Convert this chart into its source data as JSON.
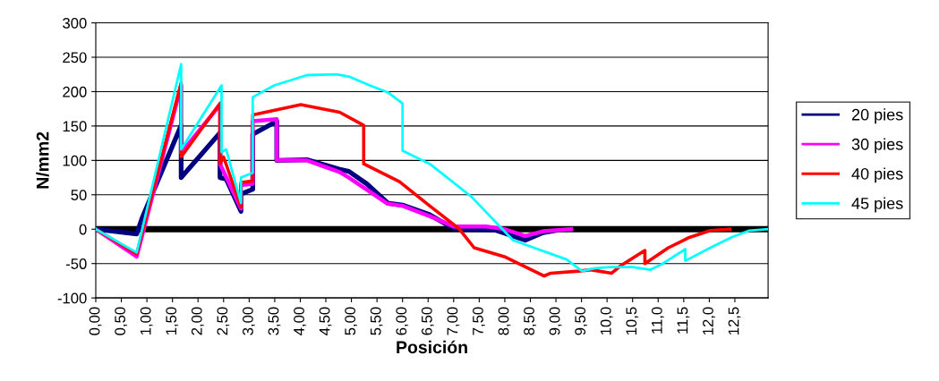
{
  "chart_data": {
    "type": "line",
    "xlabel": "Posición",
    "ylabel": "N/mm2",
    "xlim": [
      0,
      13.15
    ],
    "ylim": [
      -100,
      300
    ],
    "yticks": [
      -100,
      -50,
      0,
      50,
      100,
      150,
      200,
      250,
      300
    ],
    "xticks": [
      {
        "value": 0,
        "label": "0,00"
      },
      {
        "value": 0.5,
        "label": "0,50"
      },
      {
        "value": 1,
        "label": "1,00"
      },
      {
        "value": 1.5,
        "label": "1,50"
      },
      {
        "value": 2,
        "label": "2,00"
      },
      {
        "value": 2.5,
        "label": "2,50"
      },
      {
        "value": 3,
        "label": "3,00"
      },
      {
        "value": 3.5,
        "label": "3,50"
      },
      {
        "value": 4,
        "label": "4,00"
      },
      {
        "value": 4.5,
        "label": "4,50"
      },
      {
        "value": 5,
        "label": "5,00"
      },
      {
        "value": 5.5,
        "label": "5,50"
      },
      {
        "value": 6,
        "label": "6,00"
      },
      {
        "value": 6.5,
        "label": "6,50"
      },
      {
        "value": 7,
        "label": "7,00"
      },
      {
        "value": 7.5,
        "label": "7,50"
      },
      {
        "value": 8,
        "label": "8,00"
      },
      {
        "value": 8.5,
        "label": "8,50"
      },
      {
        "value": 9,
        "label": "9,00"
      },
      {
        "value": 9.5,
        "label": "9,50"
      },
      {
        "value": 10,
        "label": "10,0"
      },
      {
        "value": 10.5,
        "label": "10,5"
      },
      {
        "value": 11,
        "label": "11,0"
      },
      {
        "value": 11.5,
        "label": "11,5"
      },
      {
        "value": 12,
        "label": "12,0"
      },
      {
        "value": 12.5,
        "label": "12,5"
      }
    ],
    "grid": "y",
    "legend": "right",
    "marker": "none",
    "line_style": "solid",
    "ref_lines": [
      {
        "axis": "y",
        "value": 0,
        "color": "#000000"
      }
    ],
    "series": [
      {
        "name": "20 pies",
        "color": "#000080",
        "x": [
          0,
          0.8,
          0.91,
          1.67,
          1.67,
          2.43,
          2.43,
          2.55,
          2.84,
          2.84,
          3.07,
          3.07,
          3.54,
          3.54,
          4.13,
          4.77,
          4.95,
          5.3,
          5.71,
          6.0,
          6.53,
          7.0,
          7.2,
          7.8,
          8.4,
          8.75,
          8.98
        ],
        "values": [
          0,
          -7,
          17,
          151,
          75,
          140,
          75,
          73,
          26,
          51,
          58,
          138,
          157,
          100,
          101,
          87,
          84,
          66,
          38,
          35,
          21,
          1,
          0,
          -1,
          -16,
          -5,
          -2
        ]
      },
      {
        "name": "30 pies",
        "color": "#ff00ff",
        "x": [
          0,
          0.8,
          1.67,
          1.67,
          2.43,
          2.43,
          2.84,
          2.84,
          3.07,
          3.07,
          3.54,
          3.54,
          4.13,
          4.77,
          4.95,
          5.71,
          6.0,
          6.53,
          7.0,
          7.63,
          8.0,
          8.4,
          8.75,
          9.3
        ],
        "values": [
          0,
          -40,
          209,
          111,
          181,
          95,
          30,
          64,
          66,
          157,
          160,
          100,
          100,
          83,
          75,
          37,
          34,
          19,
          4,
          4,
          0,
          -10,
          -3,
          0
        ]
      },
      {
        "name": "40 pies",
        "color": "#ff0000",
        "x": [
          0,
          0.8,
          1.67,
          1.67,
          2.43,
          2.43,
          2.5,
          2.84,
          2.84,
          3.07,
          3.07,
          4.01,
          4.77,
          5.24,
          5.24,
          5.94,
          6.53,
          7.1,
          7.4,
          7.99,
          8.77,
          8.9,
          9.45,
          9.68,
          10.09,
          10.27,
          10.74,
          10.74,
          11.2,
          11.61,
          12.02,
          12.4
        ],
        "values": [
          0,
          -36,
          213,
          105,
          183,
          95,
          105,
          32,
          68,
          70,
          166,
          181,
          170,
          151,
          95,
          69,
          34,
          1,
          -27,
          -40,
          -68,
          -64,
          -61,
          -59,
          -64,
          -53,
          -31,
          -50,
          -27,
          -12,
          -2,
          0
        ]
      },
      {
        "name": "45 pies",
        "color": "#00ffff",
        "x": [
          0,
          0.8,
          1.67,
          1.67,
          2.46,
          2.46,
          2.55,
          2.84,
          2.84,
          3.07,
          3.07,
          3.49,
          4.13,
          4.71,
          4.95,
          5.36,
          5.71,
          6.0,
          6.0,
          6.53,
          7.35,
          8.16,
          8.57,
          9.21,
          9.51,
          9.74,
          10.04,
          10.5,
          10.85,
          11.09,
          11.53,
          11.53,
          12.02,
          12.43,
          12.78,
          13.15
        ],
        "values": [
          0,
          -34,
          240,
          116,
          209,
          112,
          116,
          38,
          75,
          82,
          192,
          209,
          224,
          225,
          222,
          209,
          199,
          183,
          114,
          95,
          47,
          -16,
          -27,
          -44,
          -61,
          -57,
          -55,
          -55,
          -59,
          -50,
          -29,
          -46,
          -27,
          -12,
          -2,
          0
        ]
      }
    ]
  }
}
